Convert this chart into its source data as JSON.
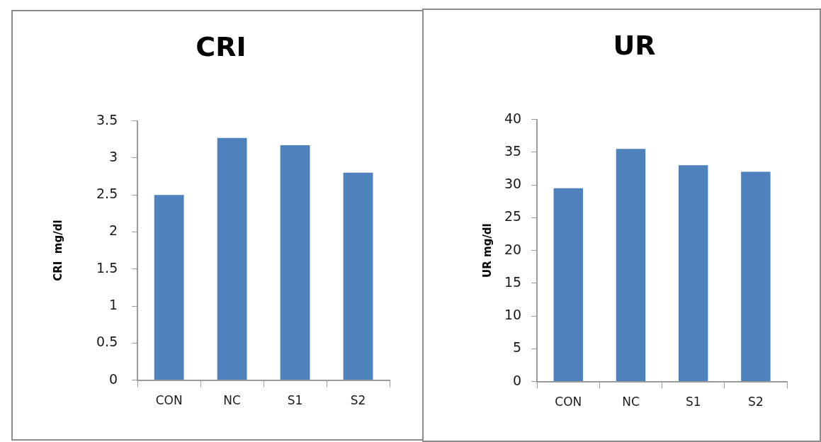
{
  "chart_data": [
    {
      "type": "bar",
      "title": "CRI",
      "ylabel": "CRI  mg/dl",
      "categories": [
        "CON",
        "NC",
        "S1",
        "S2"
      ],
      "values": [
        2.5,
        3.27,
        3.17,
        2.8
      ],
      "color": "#4f81bd",
      "ylim": [
        0,
        3.5
      ],
      "yticks": [
        0,
        0.5,
        1,
        1.5,
        2,
        2.5,
        3,
        3.5
      ],
      "legend": false,
      "grid": false
    },
    {
      "type": "bar",
      "title": "UR",
      "ylabel": "UR mg/dl",
      "categories": [
        "CON",
        "NC",
        "S1",
        "S2"
      ],
      "values": [
        29.5,
        35.5,
        33,
        32
      ],
      "color": "#4f81bd",
      "ylim": [
        0,
        40
      ],
      "yticks": [
        0,
        5,
        10,
        15,
        20,
        25,
        30,
        35,
        40
      ],
      "legend": false,
      "grid": false
    }
  ]
}
